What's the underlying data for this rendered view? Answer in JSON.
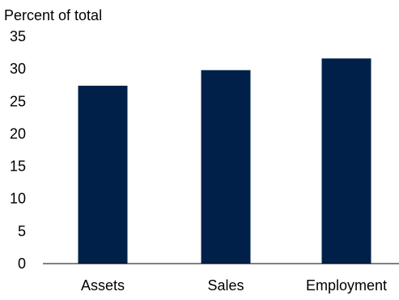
{
  "chart_data": {
    "type": "bar",
    "title": "",
    "ylabel": "Percent of total",
    "xlabel": "",
    "categories": [
      "Assets",
      "Sales",
      "Employment"
    ],
    "values": [
      27.4,
      29.8,
      31.6
    ],
    "ylim": [
      0,
      35
    ],
    "yticks": [
      0,
      5,
      10,
      15,
      20,
      25,
      30,
      35
    ],
    "grid": false,
    "legend": "none",
    "bar_color": "#00204a",
    "axis_color": "#000000"
  }
}
